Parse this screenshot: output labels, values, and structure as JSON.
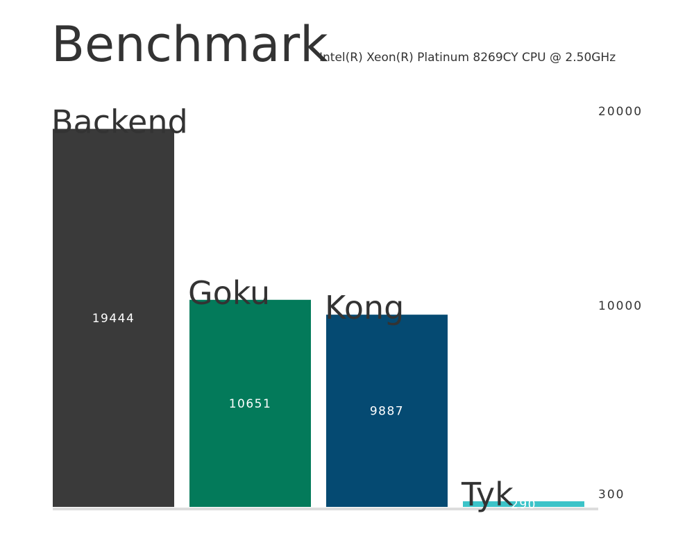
{
  "chart_data": {
    "type": "bar",
    "title": "Benchmark",
    "subtitle": "Intel(R) Xeon(R) Platinum 8269CY CPU @ 2.50GHz",
    "categories": [
      "Backend",
      "Goku",
      "Kong",
      "Tyk"
    ],
    "values": [
      19444,
      10651,
      9887,
      290
    ],
    "colors": [
      "#3a3a3a",
      "#037a5a",
      "#054a72",
      "#3cc3c8"
    ],
    "ylim": [
      0,
      20000
    ],
    "yticks": [
      300,
      10000,
      20000
    ]
  }
}
